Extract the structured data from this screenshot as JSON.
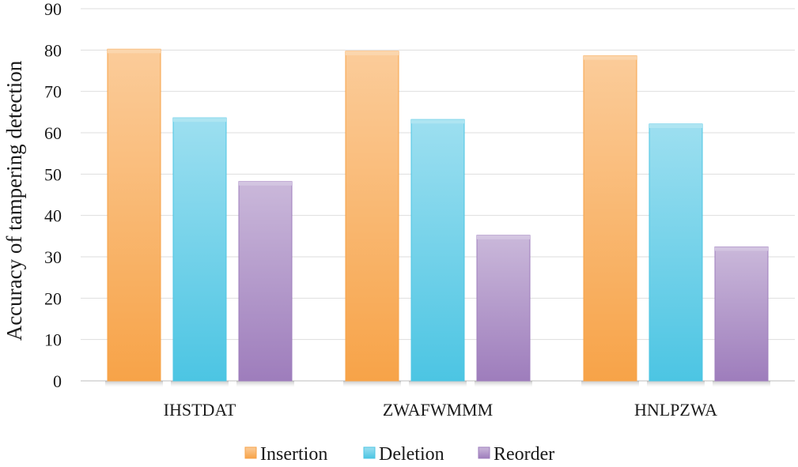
{
  "chart_data": {
    "type": "bar",
    "title": "",
    "xlabel": "",
    "ylabel": "Accuracy of tampering detection",
    "ylim": [
      0,
      90
    ],
    "yticks": [
      0,
      10,
      20,
      30,
      40,
      50,
      60,
      70,
      80,
      90
    ],
    "grid": true,
    "legend_position": "bottom",
    "categories": [
      "IHSTDAT",
      "ZWAFWMMM",
      "HNLPZWA"
    ],
    "series": [
      {
        "name": "Insertion",
        "values": [
          80.2,
          79.7,
          78.6
        ],
        "color": "#f7a348"
      },
      {
        "name": "Deletion",
        "values": [
          63.6,
          63.2,
          62.1
        ],
        "color": "#4cc5e3"
      },
      {
        "name": "Reorder",
        "values": [
          48.2,
          35.2,
          32.4
        ],
        "color": "#9e7dbc"
      }
    ]
  }
}
